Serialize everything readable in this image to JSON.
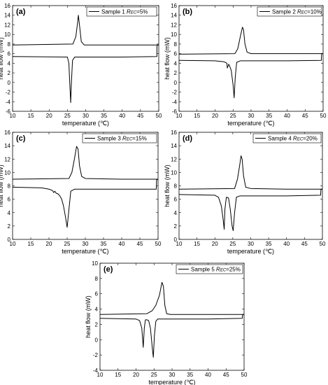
{
  "chart_data": [
    {
      "type": "line",
      "panel_label": "(a)",
      "legend": [
        "Sample 1 ",
        "R",
        "EC",
        "=5%"
      ],
      "xlabel": "temperature (℃)",
      "ylabel": "heat flow (mW)",
      "xlim": [
        10,
        50
      ],
      "ylim": [
        -6,
        16
      ],
      "xticks": [
        10,
        15,
        20,
        25,
        30,
        35,
        40,
        45,
        50
      ],
      "yticks": [
        -6,
        -4,
        -2,
        0,
        2,
        4,
        6,
        8,
        10,
        12,
        14,
        16
      ],
      "series": [
        {
          "x": [
            10,
            26.5,
            27.3,
            27.8,
            28.0,
            28.3,
            28.8,
            29.6,
            40,
            50
          ],
          "y": [
            7.8,
            8.0,
            9.5,
            12.5,
            14.0,
            12.0,
            8.5,
            7.8,
            7.8,
            7.8
          ]
        },
        {
          "x": [
            10,
            25.0,
            25.4,
            25.7,
            25.9,
            26.1,
            26.4,
            27.0,
            40,
            49.5,
            49.5,
            49.6,
            50
          ],
          "y": [
            5.4,
            5.3,
            4.0,
            -1.0,
            -4.2,
            0.0,
            4.6,
            5.3,
            5.3,
            5.4,
            7.5,
            7.8,
            7.8
          ]
        }
      ]
    },
    {
      "type": "line",
      "panel_label": "(b)",
      "legend": [
        "Sample 2 ",
        "R",
        "EC",
        "=10%"
      ],
      "xlabel": "temperature (℃)",
      "ylabel": "heat flow (mW)",
      "xlim": [
        10,
        50
      ],
      "ylim": [
        -6,
        16
      ],
      "xticks": [
        10,
        15,
        20,
        25,
        30,
        35,
        40,
        45,
        50
      ],
      "yticks": [
        -6,
        -4,
        -2,
        0,
        2,
        4,
        6,
        8,
        10,
        12,
        14,
        16
      ],
      "series": [
        {
          "x": [
            10,
            25.5,
            26.3,
            27.0,
            27.6,
            27.9,
            28.3,
            28.9,
            30,
            40,
            50
          ],
          "y": [
            5.9,
            6.0,
            7.0,
            9.5,
            11.5,
            11.0,
            8.0,
            6.3,
            6.0,
            6.0,
            6.0
          ]
        },
        {
          "x": [
            10,
            20.0,
            22.5,
            23.3,
            23.4,
            23.6,
            23.8,
            24.0,
            24.5,
            25.0,
            25.3,
            25.6,
            26.0,
            27.0,
            40,
            49.5,
            49.6,
            50
          ],
          "y": [
            4.6,
            4.5,
            4.3,
            4.0,
            3.0,
            3.4,
            3.8,
            3.5,
            2.5,
            -0.5,
            -3.2,
            1.0,
            4.2,
            4.5,
            4.5,
            4.6,
            6.0,
            6.0
          ]
        }
      ]
    },
    {
      "type": "line",
      "panel_label": "(c)",
      "legend": [
        "Sample 3 ",
        "R",
        "EC",
        "=15%"
      ],
      "xlabel": "temperature (℃)",
      "ylabel": "heat flow (mW)",
      "xlim": [
        10,
        50
      ],
      "ylim": [
        0,
        16
      ],
      "xticks": [
        10,
        15,
        20,
        25,
        30,
        35,
        40,
        45,
        50
      ],
      "yticks": [
        0,
        2,
        4,
        6,
        8,
        10,
        12,
        14,
        16
      ],
      "series": [
        {
          "x": [
            10,
            25.5,
            26.3,
            27.0,
            27.6,
            28.0,
            28.4,
            29.0,
            30,
            40,
            50
          ],
          "y": [
            9.0,
            9.1,
            10.0,
            12.0,
            13.9,
            13.5,
            11.0,
            9.4,
            9.1,
            9.0,
            9.0
          ]
        },
        {
          "x": [
            10,
            18.0,
            20.0,
            21.0,
            21.3,
            21.6,
            22.0,
            22.5,
            23.0,
            23.5,
            24.0,
            24.5,
            25.0,
            25.5,
            26.0,
            27.0,
            40,
            49.5,
            49.6,
            50
          ],
          "y": [
            7.8,
            7.7,
            7.5,
            7.3,
            7.0,
            7.2,
            6.9,
            6.8,
            6.5,
            6.0,
            5.0,
            3.5,
            1.8,
            4.5,
            7.2,
            7.5,
            7.5,
            7.5,
            8.9,
            9.0
          ]
        }
      ]
    },
    {
      "type": "line",
      "panel_label": "(d)",
      "legend": [
        "Sample 4 ",
        "R",
        "EC",
        "=20%"
      ],
      "xlabel": "temperature (℃)",
      "ylabel": "heat flow (mW)",
      "xlim": [
        10,
        50
      ],
      "ylim": [
        0,
        16
      ],
      "xticks": [
        10,
        15,
        20,
        25,
        30,
        35,
        40,
        45,
        50
      ],
      "yticks": [
        0,
        2,
        4,
        6,
        8,
        10,
        12,
        14,
        16
      ],
      "series": [
        {
          "x": [
            10,
            25.5,
            26.3,
            26.9,
            27.3,
            27.6,
            28.0,
            28.6,
            30,
            40,
            50
          ],
          "y": [
            7.5,
            7.6,
            9.0,
            11.0,
            12.5,
            12.0,
            9.5,
            7.8,
            7.6,
            7.5,
            7.5
          ]
        },
        {
          "x": [
            10,
            20.0,
            21.0,
            21.8,
            22.3,
            22.6,
            22.8,
            23.2,
            23.8,
            24.3,
            24.8,
            25.1,
            25.5,
            26.0,
            27.0,
            40,
            49.5,
            49.6,
            50
          ],
          "y": [
            6.7,
            6.6,
            6.3,
            5.0,
            3.0,
            1.5,
            4.5,
            6.3,
            6.2,
            4.5,
            2.0,
            1.3,
            4.0,
            6.3,
            6.5,
            6.5,
            6.6,
            7.5,
            7.5
          ]
        }
      ]
    },
    {
      "type": "line",
      "panel_label": "(e)",
      "legend": [
        "Sample 5 ",
        "R",
        "EC",
        "=25%"
      ],
      "xlabel": "temperature (℃)",
      "ylabel": "heat flow (mW)",
      "xlim": [
        10,
        50
      ],
      "ylim": [
        -4,
        10
      ],
      "xticks": [
        10,
        15,
        20,
        25,
        30,
        35,
        40,
        45,
        50
      ],
      "yticks": [
        -4,
        -2,
        0,
        2,
        4,
        6,
        8,
        10
      ],
      "series": [
        {
          "x": [
            10,
            23.0,
            24.5,
            25.5,
            26.5,
            27.2,
            27.6,
            28.0,
            28.5,
            29.5,
            40,
            50
          ],
          "y": [
            3.3,
            3.4,
            3.8,
            4.5,
            5.8,
            7.5,
            7.0,
            4.5,
            3.4,
            3.3,
            3.3,
            3.3
          ]
        },
        {
          "x": [
            10,
            20.0,
            21.0,
            21.6,
            22.0,
            22.3,
            22.6,
            23.0,
            23.5,
            24.0,
            24.5,
            24.8,
            25.1,
            25.5,
            26.0,
            27.0,
            40,
            49.5,
            49.6,
            50
          ],
          "y": [
            2.8,
            2.7,
            2.5,
            1.5,
            -1.0,
            1.5,
            2.6,
            2.6,
            2.5,
            1.5,
            -1.0,
            -2.3,
            0.5,
            2.4,
            2.7,
            2.7,
            2.7,
            2.8,
            3.3,
            3.3
          ]
        }
      ]
    }
  ]
}
